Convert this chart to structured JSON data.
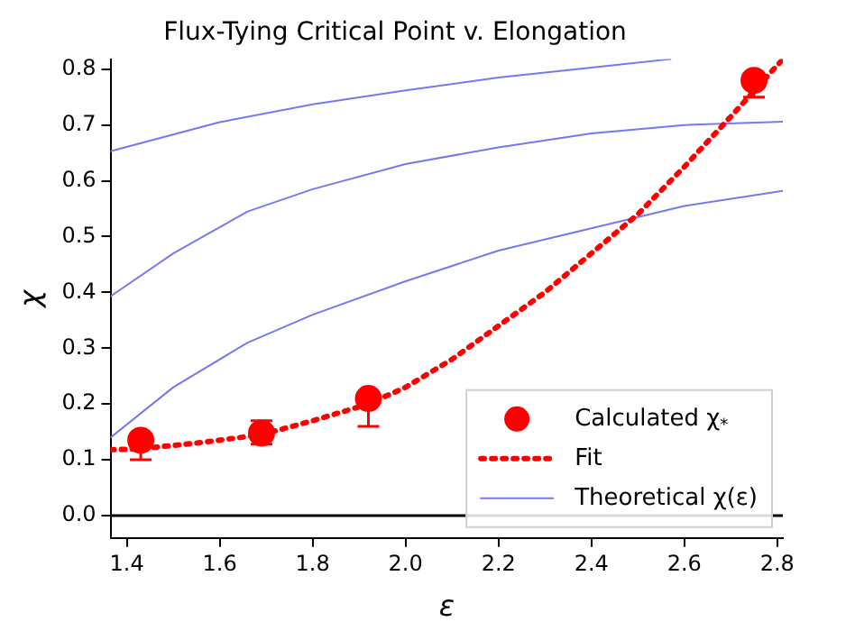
{
  "chart_data": {
    "type": "line",
    "title": "Flux-Tying Critical Point v. Elongation",
    "xlabel": "ε",
    "ylabel": "χ",
    "xlim": [
      1.365,
      2.812
    ],
    "xticks": [
      1.4,
      1.6,
      1.8,
      {
        "value": 2,
        "label": "2.0"
      },
      2.2,
      2.4,
      2.6,
      2.8
    ],
    "ylim": [
      -0.04,
      0.818
    ],
    "yticks": [
      {
        "value": 0,
        "label": "0.0"
      },
      0.1,
      0.2,
      0.3,
      0.4,
      0.5,
      0.6,
      0.7,
      0.8
    ],
    "grid": false,
    "legend": "bottom right",
    "ref_lines": [
      {
        "axis": "y",
        "value": 0,
        "color": "#000000"
      }
    ],
    "series": [
      {
        "type": "scatter",
        "name": "Calculated χ$_{*}$",
        "color": "#ff0000",
        "marker": "circle",
        "x": [
          1.43,
          1.69,
          1.92,
          2.75
        ],
        "values": [
          0.135,
          0.148,
          0.21,
          0.78
        ],
        "errors": [
          [
            0.1,
            0.135
          ],
          [
            0.128,
            0.17
          ],
          [
            0.16,
            0.21
          ],
          [
            0.75,
            0.78
          ]
        ]
      },
      {
        "name": "Fit",
        "color": "#ff0000",
        "line_style": "dotted",
        "marker": "none",
        "x": [
          1.365,
          1.43,
          1.55,
          1.69,
          1.8,
          1.92,
          2.0,
          2.1,
          2.2,
          2.3,
          2.4,
          2.5,
          2.6,
          2.7,
          2.812
        ],
        "values": [
          0.118,
          0.12,
          0.13,
          0.145,
          0.17,
          0.2,
          0.23,
          0.28,
          0.34,
          0.4,
          0.47,
          0.54,
          0.625,
          0.715,
          0.818
        ]
      },
      {
        "name": "Theoretical χ(ε)",
        "color": "#7878f0",
        "line_style": "solid",
        "marker": "none",
        "x": [
          1.365,
          1.5,
          1.66,
          1.8,
          2.0,
          2.2,
          2.4,
          2.6,
          2.812
        ],
        "values": [
          0.14,
          0.23,
          0.31,
          0.36,
          0.42,
          0.475,
          0.515,
          0.555,
          0.582
        ]
      },
      {
        "color": "#7878f0",
        "line_style": "solid",
        "marker": "none",
        "x": [
          1.365,
          1.5,
          1.66,
          1.8,
          2.0,
          2.2,
          2.4,
          2.6,
          2.812
        ],
        "values": [
          0.393,
          0.47,
          0.545,
          0.585,
          0.63,
          0.66,
          0.685,
          0.7,
          0.706
        ]
      },
      {
        "color": "#7878f0",
        "line_style": "solid",
        "marker": "none",
        "x": [
          1.365,
          1.6,
          1.8,
          2.0,
          2.2,
          2.4,
          2.57
        ],
        "values": [
          0.653,
          0.705,
          0.737,
          0.762,
          0.785,
          0.803,
          0.818
        ]
      }
    ]
  }
}
